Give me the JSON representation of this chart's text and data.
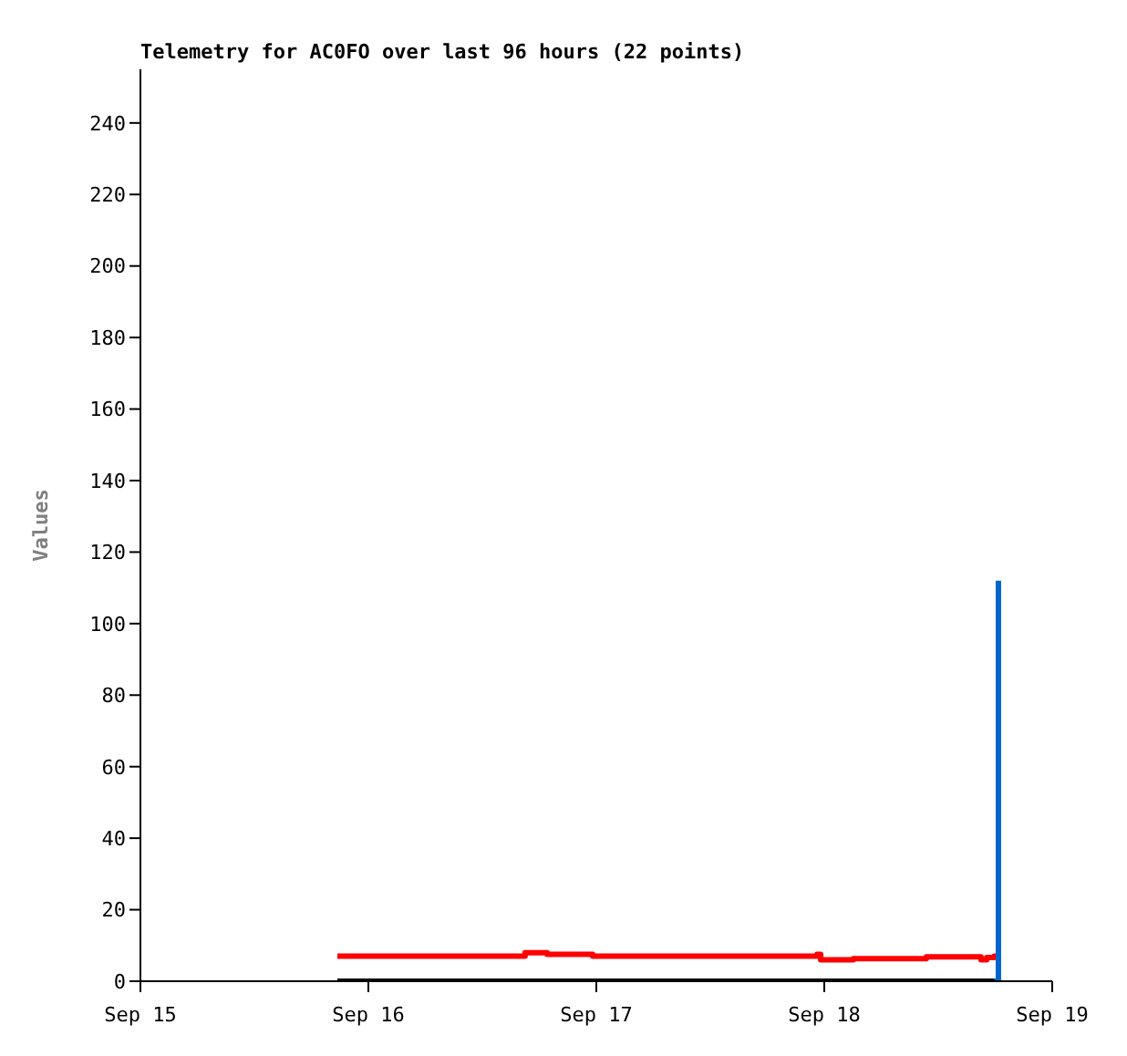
{
  "chart_data": {
    "type": "step",
    "title": "Telemetry for AC0FO over last 96 hours (22 points)",
    "ylabel": "Values",
    "xlim": [
      "--09-15",
      "--09-19"
    ],
    "xticks": [
      {
        "value": "--09-15",
        "label": "Sep 15"
      },
      {
        "value": "--09-16",
        "label": "Sep 16"
      },
      {
        "value": "--09-17",
        "label": "Sep 17"
      },
      {
        "value": "--09-18",
        "label": "Sep 18"
      },
      {
        "value": "--09-19",
        "label": "Sep 19"
      }
    ],
    "ylim": [
      0,
      255
    ],
    "yticks": [
      0,
      20,
      40,
      60,
      80,
      100,
      120,
      140,
      160,
      180,
      200,
      220,
      240
    ],
    "marker": "none",
    "series": [
      {
        "color": "#ff0000",
        "x": [
          "--09-15T20:44",
          "--09-16T16:30",
          "--09-16T18:49",
          "--09-16T23:37",
          "--09-17T23:14",
          "--09-17T23:37",
          "--09-18T03:04",
          "--09-18T10:45",
          "--09-18T16:30",
          "--09-18T17:06",
          "--09-18T17:54",
          "--09-18T18:20"
        ],
        "values": [
          7,
          8,
          7.5,
          7,
          7.5,
          6,
          6.3,
          6.8,
          6,
          6.6,
          7,
          7
        ]
      },
      {
        "color": "#000000",
        "x": [
          "--09-15T20:44",
          "--09-18T18:20"
        ],
        "values": [
          0,
          0
        ]
      },
      {
        "color": "#0066cc",
        "x": [
          "--09-18T17:54",
          "--09-18T18:20"
        ],
        "values": [
          0,
          112
        ]
      }
    ]
  }
}
